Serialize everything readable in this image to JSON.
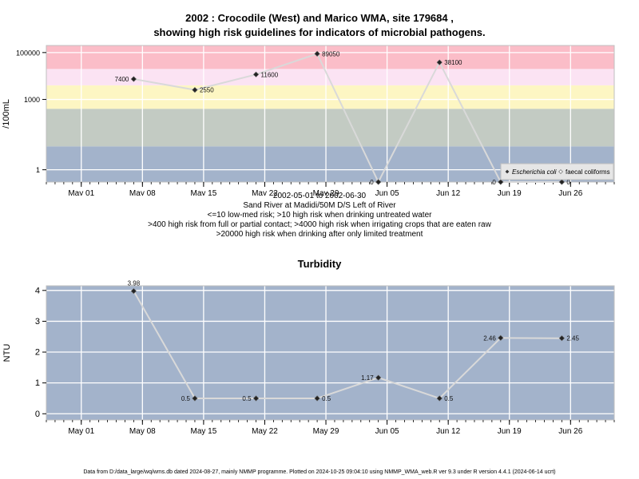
{
  "chart_data": [
    {
      "type": "line",
      "title_line1": "2002 : Crocodile (West) and Marico WMA, site 179684 ,",
      "title_line2": "showing high risk guidelines for indicators of microbial pathogens.",
      "ylabel": "/100mL",
      "yscale": "log10",
      "ylim": [
        0.3,
        200000
      ],
      "yticks": [
        {
          "value": 1,
          "label": "1"
        },
        {
          "value": 1000,
          "label": "1000"
        },
        {
          "value": 100000,
          "label": "100000"
        }
      ],
      "xlim": [
        "2002-04-27",
        "2002-07-01"
      ],
      "xticks": [
        {
          "date": "2002-05-01",
          "label": "May 01"
        },
        {
          "date": "2002-05-08",
          "label": "May 08"
        },
        {
          "date": "2002-05-15",
          "label": "May 15"
        },
        {
          "date": "2002-05-22",
          "label": "May 22"
        },
        {
          "date": "2002-05-29",
          "label": "May 29"
        },
        {
          "date": "2002-06-05",
          "label": "Jun 05"
        },
        {
          "date": "2002-06-12",
          "label": "Jun 12"
        },
        {
          "date": "2002-06-19",
          "label": "Jun 19"
        },
        {
          "date": "2002-06-26",
          "label": "Jun 26"
        }
      ],
      "risk_bands": [
        {
          "from": 0.3,
          "to": 10,
          "color": "#a3b3cb"
        },
        {
          "from": 10,
          "to": 400,
          "color": "#c3cbc3"
        },
        {
          "from": 400,
          "to": 4000,
          "color": "#fdf6c3"
        },
        {
          "from": 4000,
          "to": 20000,
          "color": "#fbe3f3"
        },
        {
          "from": 20000,
          "to": 200000,
          "color": "#fbbdc8"
        }
      ],
      "series": [
        {
          "name": "Escherichia coli",
          "points": [
            {
              "x": "2002-05-07",
              "y": 7400,
              "label": "7400",
              "label_side": "left"
            },
            {
              "x": "2002-05-14",
              "y": 2550,
              "label": "2550",
              "label_side": "right"
            },
            {
              "x": "2002-05-21",
              "y": 11600,
              "label": "11600",
              "label_side": "right"
            },
            {
              "x": "2002-05-28",
              "y": 89050,
              "label": "89050",
              "label_side": "right"
            },
            {
              "x": "2002-06-04",
              "y": 0,
              "label": "0",
              "label_side": "left"
            },
            {
              "x": "2002-06-11",
              "y": 38100,
              "label": "38100",
              "label_side": "right"
            },
            {
              "x": "2002-06-18",
              "y": 0,
              "label": "0",
              "label_side": "left"
            },
            {
              "x": "2002-06-25",
              "y": 0,
              "label": "0",
              "label_side": "right"
            }
          ]
        },
        {
          "name": "faecal coliforms",
          "points": []
        }
      ],
      "legend": {
        "placement": "bottom-right",
        "items": [
          "Escherichia coli",
          "faecal coliforms"
        ]
      },
      "grid": true,
      "annotations": [
        "2002-05-01 to 2002-06-30",
        "Sand River at Madidi/50M D/S Left of River",
        "<=10 low-med risk; >10 high risk when drinking untreated water",
        ">400 high risk from full or partial contact; >4000 high risk when irrigating crops that are eaten raw",
        ">20000 high risk when drinking after only limited treatment"
      ]
    },
    {
      "type": "line",
      "title": "Turbidity",
      "ylabel": "NTU",
      "ylim": [
        -0.2,
        4.15
      ],
      "yticks": [
        {
          "value": 0,
          "label": "0"
        },
        {
          "value": 1,
          "label": "1"
        },
        {
          "value": 2,
          "label": "2"
        },
        {
          "value": 3,
          "label": "3"
        },
        {
          "value": 4,
          "label": "4"
        }
      ],
      "xlim": [
        "2002-04-27",
        "2002-07-01"
      ],
      "xticks": [
        {
          "date": "2002-05-01",
          "label": "May 01"
        },
        {
          "date": "2002-05-08",
          "label": "May 08"
        },
        {
          "date": "2002-05-15",
          "label": "May 15"
        },
        {
          "date": "2002-05-22",
          "label": "May 22"
        },
        {
          "date": "2002-05-29",
          "label": "May 29"
        },
        {
          "date": "2002-06-05",
          "label": "Jun 05"
        },
        {
          "date": "2002-06-12",
          "label": "Jun 12"
        },
        {
          "date": "2002-06-19",
          "label": "Jun 19"
        },
        {
          "date": "2002-06-26",
          "label": "Jun 26"
        }
      ],
      "background": "#a3b3cb",
      "grid": true,
      "series": [
        {
          "points": [
            {
              "x": "2002-05-07",
              "y": 3.98,
              "label": "3.98",
              "label_side": "above"
            },
            {
              "x": "2002-05-14",
              "y": 0.5,
              "label": "0.5",
              "label_side": "left"
            },
            {
              "x": "2002-05-21",
              "y": 0.5,
              "label": "0.5",
              "label_side": "left"
            },
            {
              "x": "2002-05-28",
              "y": 0.5,
              "label": "0.5",
              "label_side": "right"
            },
            {
              "x": "2002-06-04",
              "y": 1.17,
              "label": "1.17",
              "label_side": "left"
            },
            {
              "x": "2002-06-11",
              "y": 0.5,
              "label": "0.5",
              "label_side": "right"
            },
            {
              "x": "2002-06-18",
              "y": 2.46,
              "label": "2.46",
              "label_side": "left"
            },
            {
              "x": "2002-06-25",
              "y": 2.45,
              "label": "2.45",
              "label_side": "right"
            }
          ]
        }
      ]
    }
  ],
  "footer": "Data from D:/data_large/wq/wms.db dated 2024-08-27, mainly NMMP programme. Plotted on 2024-10-25 09:04:10 using NMMP_WMA_web.R ver 9.3 under R version 4.4.1 (2024-06-14 ucrt)",
  "colors": {
    "line": "#d9d9d9",
    "point": "#222222",
    "grid": "#ffffff"
  }
}
